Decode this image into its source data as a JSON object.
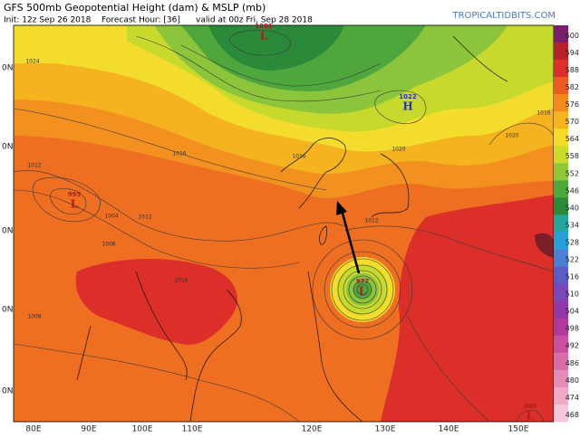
{
  "header": {
    "title": "GFS 500mb Geopotential Height (dam) & MSLP (mb)",
    "init": "Init: 12z Sep 26 2018",
    "forecast": "Forecast Hour: [36]",
    "valid": "valid at 00z Fri, Sep 28 2018",
    "site": "TROPICALTIDBITS.COM"
  },
  "map": {
    "longitude_labels": [
      "80E",
      "90E",
      "100E",
      "110E",
      "120E",
      "130E",
      "140E",
      "150E"
    ],
    "latitude_labels": [
      "0N",
      "0N",
      "0N",
      "0N",
      "0N"
    ],
    "pressure_centers": [
      {
        "symbol": "L",
        "value": "1001"
      },
      {
        "symbol": "H",
        "value": "1022"
      },
      {
        "symbol": "L",
        "value": "995"
      },
      {
        "symbol": "L",
        "value": "977"
      },
      {
        "symbol": "L",
        "value": "980"
      }
    ],
    "contour_labels": [
      "1024",
      "1020",
      "1016",
      "1016",
      "1012",
      "1012",
      "1008",
      "1008",
      "1004",
      "1016",
      "1020",
      "1012",
      "1016"
    ]
  },
  "colorbar": {
    "labels": [
      "600",
      "594",
      "588",
      "582",
      "576",
      "570",
      "564",
      "558",
      "552",
      "546",
      "540",
      "534",
      "528",
      "522",
      "516",
      "510",
      "504",
      "498",
      "492",
      "486",
      "480",
      "474",
      "468"
    ],
    "colors": [
      "#7a1f6e",
      "#b8202a",
      "#dc2f2a",
      "#ee5a24",
      "#f28a1e",
      "#f6b41f",
      "#f6dc2a",
      "#c9dc2c",
      "#8fc63c",
      "#4fa83c",
      "#2c8a3a",
      "#23a79a",
      "#2a9fd6",
      "#4a7fd4",
      "#5c5cc8",
      "#7a48b8",
      "#9438a8",
      "#b03a9c",
      "#c8509e",
      "#d86ea8",
      "#e48cb8",
      "#eeaac8",
      "#f4c8da"
    ]
  }
}
